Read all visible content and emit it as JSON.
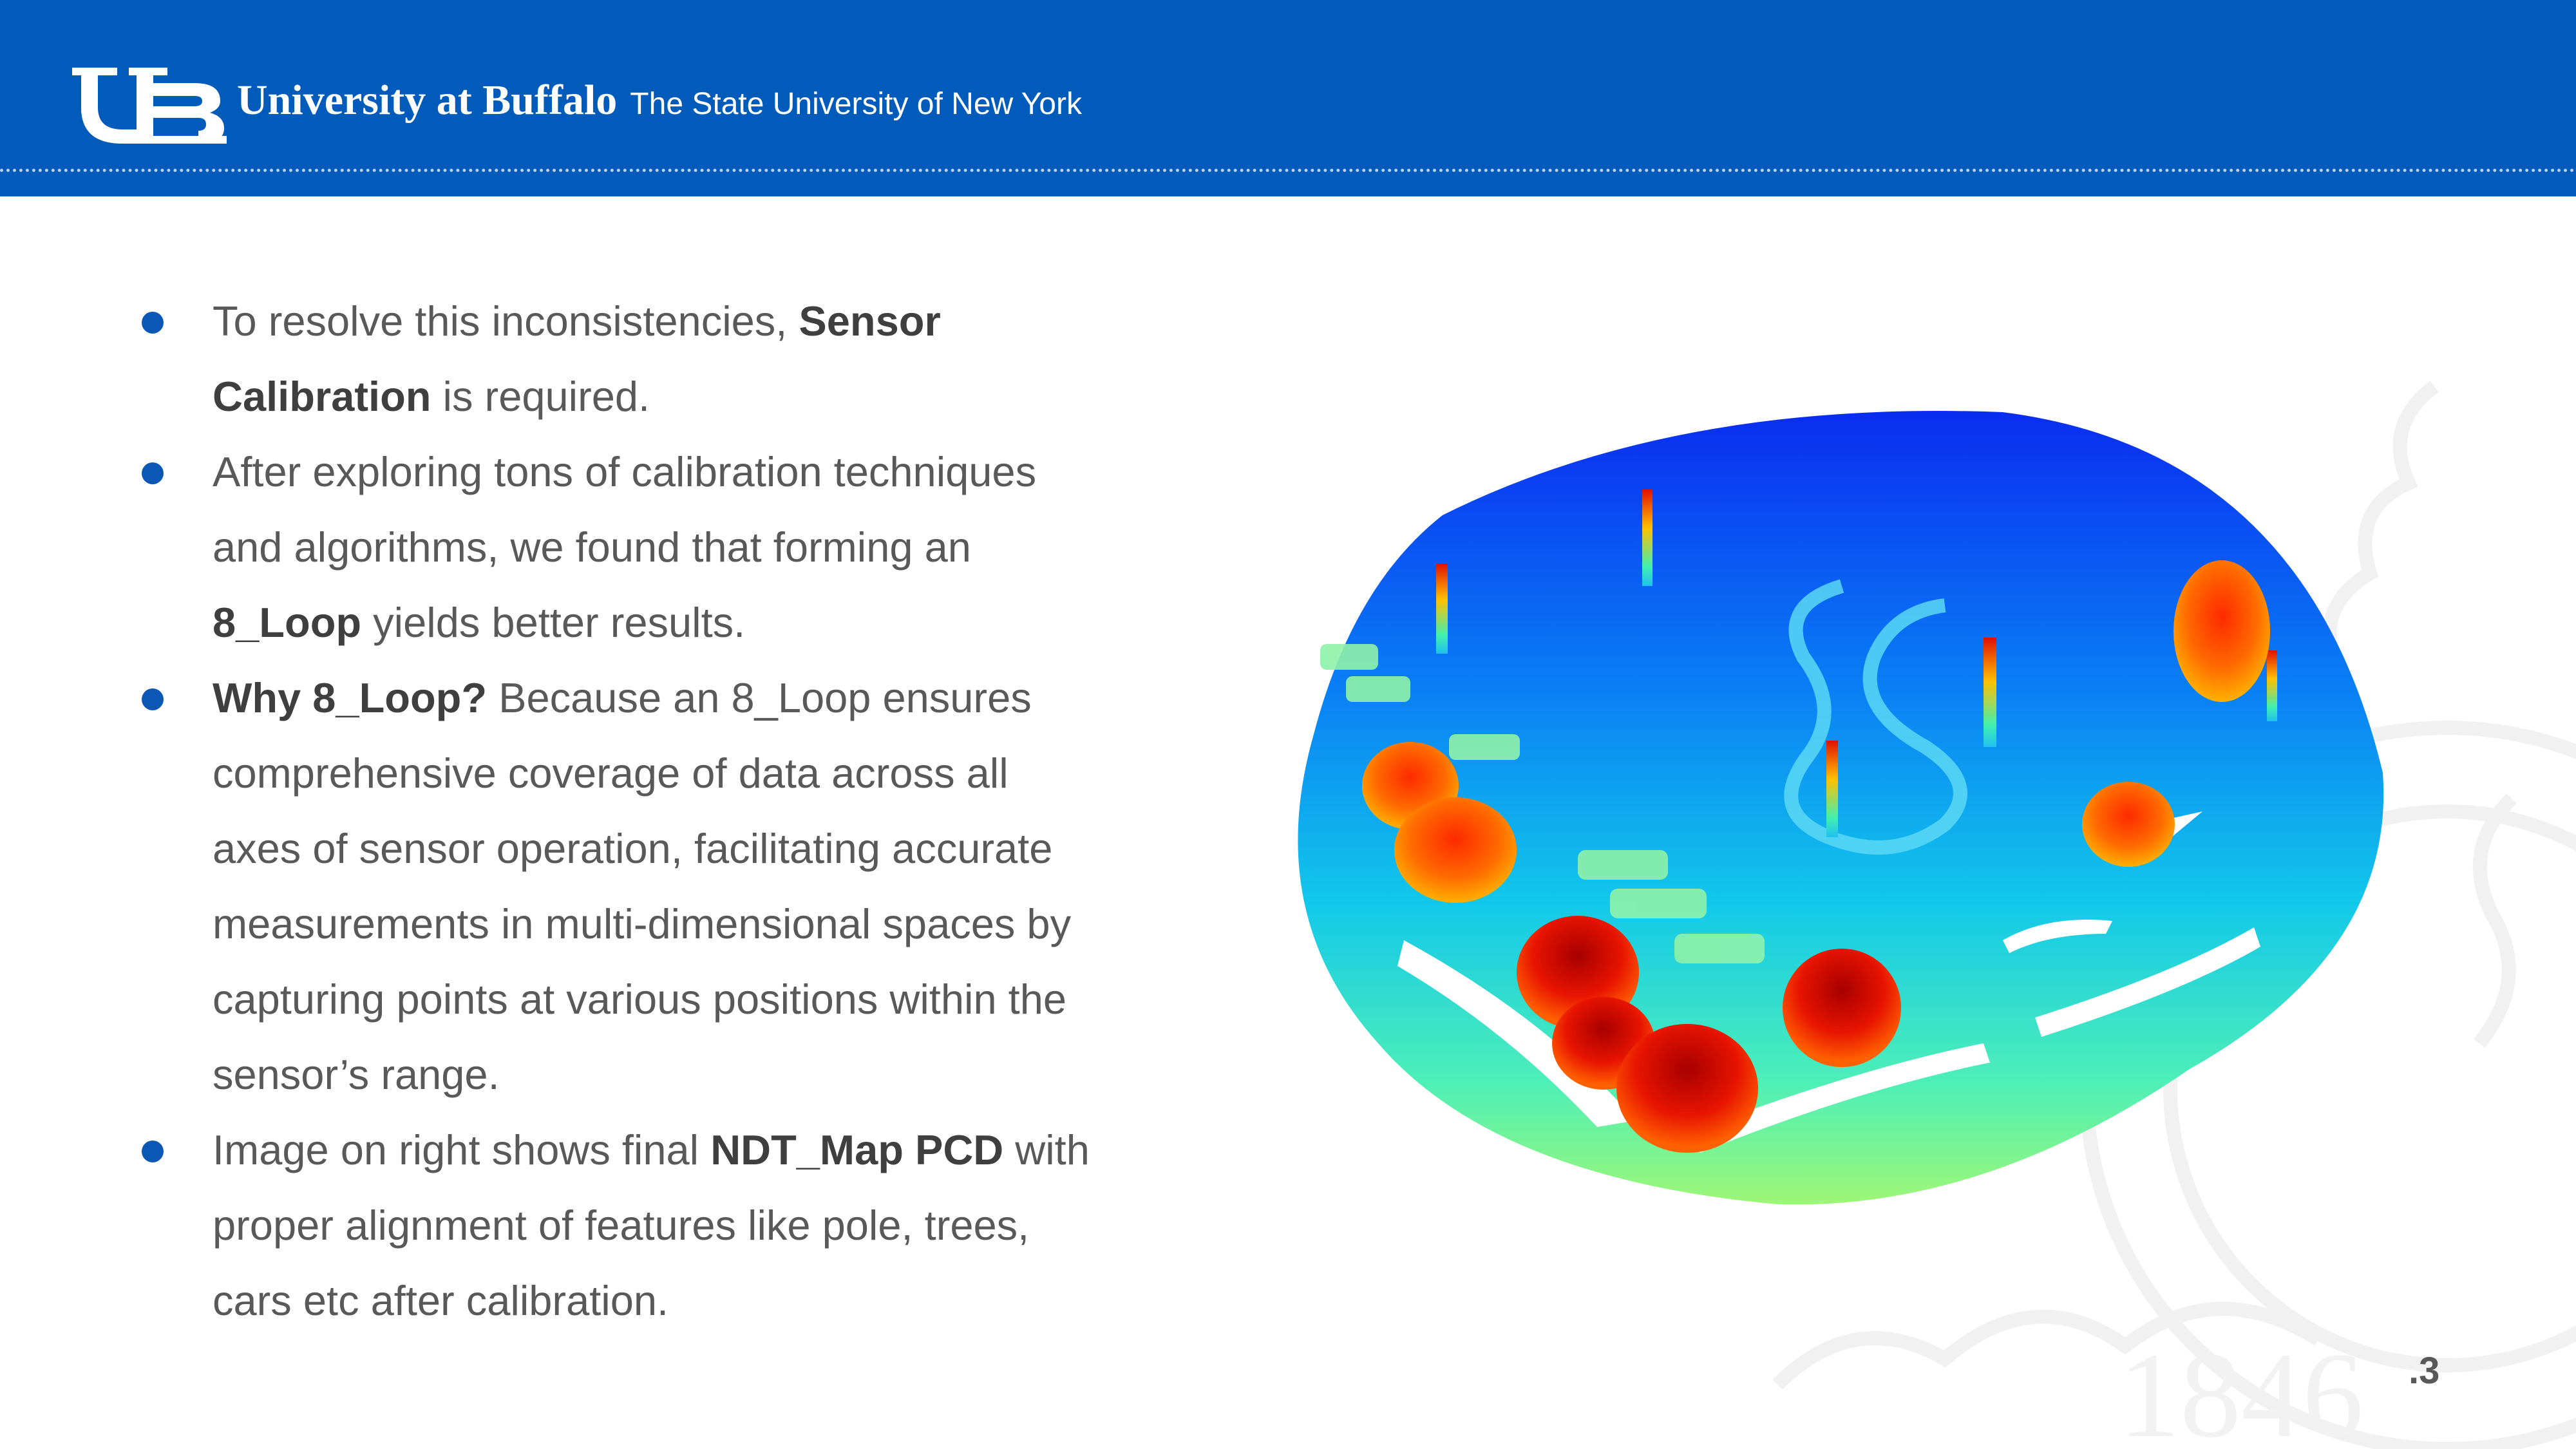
{
  "header": {
    "university": "University at Buffalo",
    "subtitle": "The State University of New York",
    "logo_icon": "ub-monogram-logo",
    "bg_color": "#005bbb"
  },
  "bullets": [
    {
      "parts": [
        {
          "t": "To resolve this inconsistencies, "
        },
        {
          "t": "Sensor Calibration",
          "b": true
        },
        {
          "t": " is required."
        }
      ]
    },
    {
      "parts": [
        {
          "t": "After exploring tons of calibration techniques and algorithms, we found that forming an "
        },
        {
          "t": "8_Loop",
          "b": true
        },
        {
          "t": " yields better results."
        }
      ]
    },
    {
      "parts": [
        {
          "t": "Why 8_Loop?",
          "b": true
        },
        {
          "t": " Because an 8_Loop ensures comprehensive coverage of data across all axes of sensor operation, facilitating accurate measurements in multi-dimensional spaces by capturing points at various positions within the sensor’s range."
        }
      ]
    },
    {
      "parts": [
        {
          "t": "Image on right shows final "
        },
        {
          "t": "NDT_Map PCD",
          "b": true
        },
        {
          "t": " with proper alignment of features like pole, trees, cars etc after calibration."
        }
      ]
    }
  ],
  "image": {
    "icon": "ndt-map-point-cloud-image"
  },
  "watermark": {
    "icon": "ub-seal-watermark"
  },
  "page_number": ".3"
}
